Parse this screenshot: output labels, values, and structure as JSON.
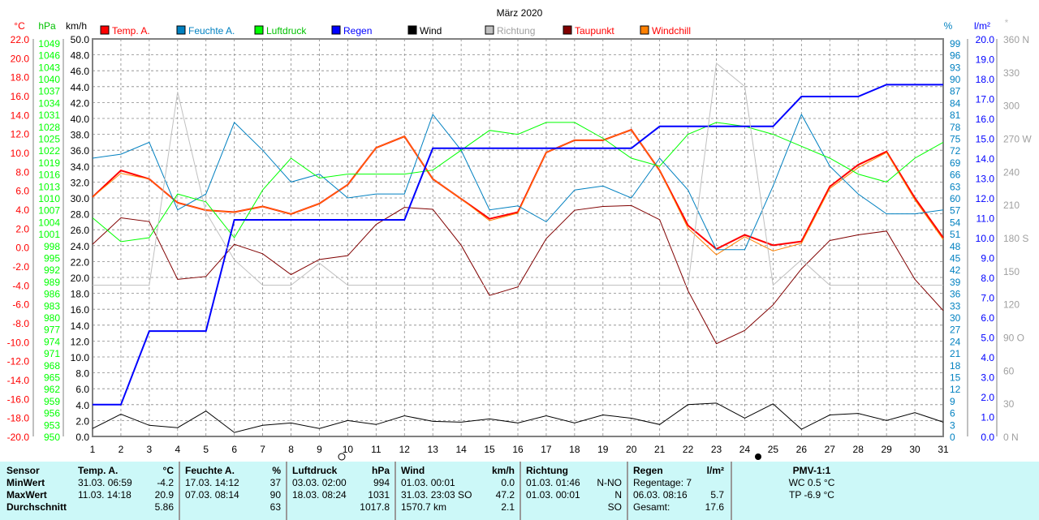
{
  "title": "März 2020",
  "legend": [
    {
      "label": "Temp. A.",
      "color": "#ff0000",
      "text": "#ff0000"
    },
    {
      "label": "Feuchte A.",
      "color": "#0080c0",
      "text": "#0080c0"
    },
    {
      "label": "Luftdruck",
      "color": "#00ff00",
      "text": "#00c000"
    },
    {
      "label": "Regen",
      "color": "#0000ff",
      "text": "#0000ff"
    },
    {
      "label": "Wind",
      "color": "#000000",
      "text": "#000000"
    },
    {
      "label": "Richtung",
      "color": "#c0c0c0",
      "text": "#a0a0a0"
    },
    {
      "label": "Taupunkt",
      "color": "#800000",
      "text": "#ff0000"
    },
    {
      "label": "Windchill",
      "color": "#ff8000",
      "text": "#ff0000"
    }
  ],
  "chart_data": {
    "type": "line",
    "title": "März 2020",
    "x": [
      1,
      2,
      3,
      4,
      5,
      6,
      7,
      8,
      9,
      10,
      11,
      12,
      13,
      14,
      15,
      16,
      17,
      18,
      19,
      20,
      21,
      22,
      23,
      24,
      25,
      26,
      27,
      28,
      29,
      30,
      31
    ],
    "axes": {
      "temp": {
        "unit": "°C",
        "range": [
          -20,
          22
        ]
      },
      "pressure": {
        "unit": "hPa",
        "range": [
          950,
          1049
        ]
      },
      "wind": {
        "unit": "km/h",
        "range": [
          0,
          50
        ]
      },
      "humidity": {
        "unit": "%",
        "range": [
          0,
          99
        ]
      },
      "rain": {
        "unit": "l/m²",
        "range": [
          0,
          20
        ]
      },
      "direction": {
        "unit": "",
        "range": [
          0,
          360
        ],
        "labels": [
          "360 N",
          "330",
          "300",
          "270 W",
          "240",
          "210",
          "180 S",
          "150",
          "120",
          "90 O",
          "60",
          "30",
          "0 N"
        ]
      }
    },
    "series": [
      {
        "name": "Temp. A.",
        "axis": "temp",
        "color": "#ff0000",
        "width": 2,
        "values": [
          5.3,
          8.1,
          7.2,
          4.7,
          3.9,
          3.7,
          4.3,
          3.5,
          4.6,
          6.6,
          10.5,
          11.7,
          7.2,
          5.1,
          3.0,
          3.7,
          10.0,
          11.3,
          11.3,
          12.4,
          8.1,
          2.3,
          -0.2,
          1.3,
          0.2,
          0.6,
          6.4,
          8.7,
          10.1,
          5.2,
          1.0
        ]
      },
      {
        "name": "Windchill",
        "axis": "temp",
        "color": "#ff8000",
        "width": 1,
        "values": [
          5.3,
          7.8,
          7.2,
          4.7,
          3.9,
          3.7,
          4.3,
          3.5,
          4.6,
          6.6,
          10.5,
          11.7,
          7.2,
          5.1,
          2.8,
          3.6,
          10.0,
          11.3,
          11.3,
          12.4,
          8.1,
          2.0,
          -0.8,
          1.1,
          -0.4,
          0.4,
          6.2,
          8.4,
          10.0,
          5.0,
          0.8
        ]
      },
      {
        "name": "Taupunkt",
        "axis": "temp",
        "color": "#800000",
        "width": 1,
        "values": [
          0.3,
          3.1,
          2.7,
          -3.4,
          -3.1,
          0.3,
          -0.7,
          -2.9,
          -1.3,
          -0.9,
          2.4,
          4.2,
          4.0,
          0.2,
          -5.1,
          -4.2,
          0.9,
          3.9,
          4.3,
          4.4,
          2.9,
          -4.6,
          -10.2,
          -8.8,
          -6.1,
          -2.3,
          0.7,
          1.3,
          1.7,
          -3.4,
          -6.7
        ]
      },
      {
        "name": "Feuchte A.",
        "axis": "humidity",
        "color": "#0080c0",
        "width": 1,
        "values": [
          70,
          71,
          74,
          57,
          61,
          79,
          72,
          64,
          66,
          60,
          61,
          61,
          81,
          72,
          57,
          58,
          54,
          62,
          63,
          60,
          70,
          62,
          47,
          47,
          63,
          81,
          68,
          61,
          56,
          56,
          57
        ]
      },
      {
        "name": "Luftdruck",
        "axis": "pressure",
        "color": "#00ff00",
        "width": 1,
        "values": [
          1005,
          999,
          1000,
          1011,
          1009,
          1000,
          1012,
          1020,
          1015,
          1016,
          1016,
          1016,
          1017,
          1022,
          1027,
          1026,
          1029,
          1029,
          1025,
          1020,
          1018,
          1026,
          1029,
          1028,
          1026,
          1023,
          1020,
          1016,
          1014,
          1020,
          1024
        ]
      },
      {
        "name": "Regen",
        "axis": "rain",
        "color": "#0000ff",
        "width": 2,
        "values": [
          1.6,
          1.6,
          5.3,
          5.3,
          5.3,
          10.9,
          10.9,
          10.9,
          10.9,
          10.9,
          10.9,
          10.9,
          14.5,
          14.5,
          14.5,
          14.5,
          14.5,
          14.5,
          14.5,
          14.5,
          15.6,
          15.6,
          15.6,
          15.6,
          15.6,
          17.1,
          17.1,
          17.1,
          17.7,
          17.7,
          17.7
        ]
      },
      {
        "name": "Wind",
        "axis": "wind",
        "color": "#000000",
        "width": 1,
        "values": [
          1.0,
          2.8,
          1.4,
          1.1,
          3.2,
          0.5,
          1.4,
          1.7,
          1.0,
          2.0,
          1.5,
          2.6,
          1.9,
          1.8,
          2.2,
          1.7,
          2.6,
          1.7,
          2.7,
          2.3,
          1.5,
          4.0,
          4.2,
          2.3,
          4.1,
          0.9,
          2.7,
          2.9,
          2.0,
          3.0,
          1.8
        ]
      },
      {
        "name": "Richtung",
        "axis": "direction",
        "color": "#c0c0c0",
        "width": 1,
        "values": [
          137,
          137,
          137,
          312,
          203,
          160,
          137,
          137,
          157,
          137,
          137,
          137,
          137,
          137,
          137,
          137,
          137,
          137,
          137,
          137,
          137,
          137,
          338,
          317,
          137,
          160,
          137,
          137,
          137,
          137,
          137
        ]
      }
    ]
  },
  "table": {
    "sensor": {
      "head": "Sensor",
      "rows": [
        "MinWert",
        "MaxWert",
        "Durchschnitt"
      ]
    },
    "temp": {
      "head": "Temp. A.",
      "unit": "°C",
      "rows": [
        [
          "31.03.  06:59",
          "-4.2"
        ],
        [
          "11.03.  14:18",
          "20.9"
        ],
        [
          "",
          "5.86"
        ]
      ]
    },
    "hum": {
      "head": "Feuchte A.",
      "unit": "%",
      "rows": [
        [
          "17.03.  14:12",
          "37"
        ],
        [
          "07.03.  08:14",
          "90"
        ],
        [
          "",
          "63"
        ]
      ]
    },
    "press": {
      "head": "Luftdruck",
      "unit": "hPa",
      "rows": [
        [
          "03.03.  02:00",
          "994"
        ],
        [
          "18.03.  08:24",
          "1031"
        ],
        [
          "",
          "1017.8"
        ]
      ]
    },
    "wind": {
      "head": "Wind",
      "unit": "km/h",
      "rows": [
        [
          "01.03.  00:01",
          "0.0"
        ],
        [
          "31.03.  23:03 SO",
          "47.2"
        ],
        [
          "1570.7 km",
          "2.1"
        ]
      ]
    },
    "dir": {
      "head": "Richtung",
      "unit": "",
      "rows": [
        [
          "01.03.  01:46",
          "N-NO"
        ],
        [
          "01.03.  00:01",
          "N"
        ],
        [
          "",
          "SO"
        ]
      ]
    },
    "rain": {
      "head": "Regen",
      "unit": "l/m²",
      "rows": [
        [
          "Regentage: 7",
          ""
        ],
        [
          "06.03.  08:16",
          "5.7"
        ],
        [
          "Gesamt:",
          "17.6"
        ]
      ]
    },
    "pmv": {
      "head": "PMV-1:1",
      "wc": "WC 0.5 °C",
      "tp": "TP -6.9 °C"
    }
  }
}
